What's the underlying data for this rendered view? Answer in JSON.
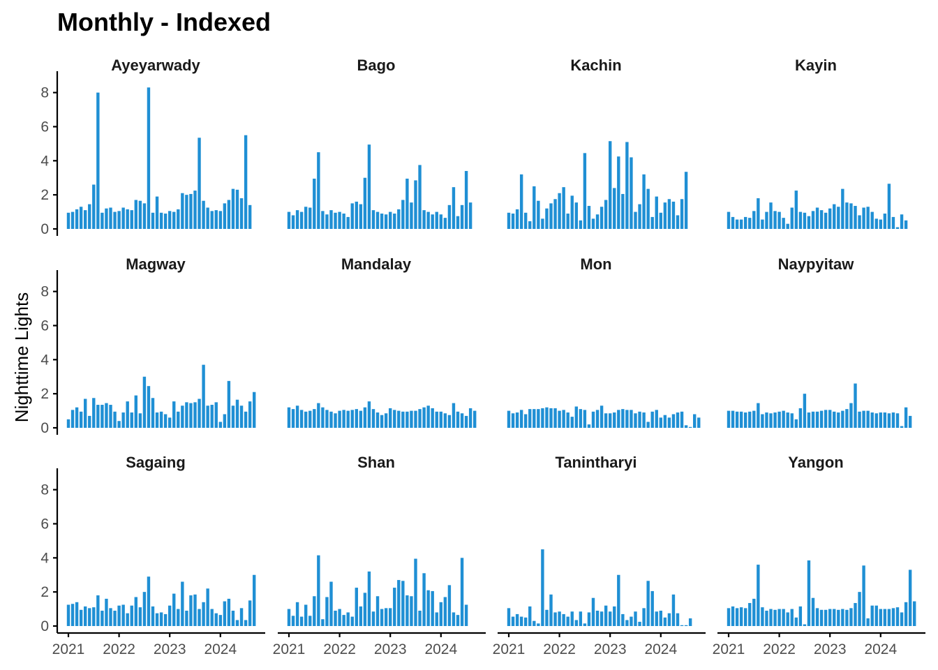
{
  "chart_data": {
    "type": "bar",
    "title": "Monthly - Indexed",
    "xlabel": "",
    "ylabel": "Nighttime Lights",
    "ylim": [
      0,
      8.6
    ],
    "y_ticks": [
      "0",
      "2",
      "4",
      "6",
      "8"
    ],
    "x_ticks": [
      "2021",
      "2022",
      "2023",
      "2024"
    ],
    "x_start": "2021-01",
    "frequency": "monthly",
    "bar_color": "#1f8fd4",
    "grid": false,
    "legend": "none",
    "facets": [
      {
        "name": "Ayeyarwady",
        "values": [
          0.95,
          1.0,
          1.15,
          1.3,
          1.1,
          1.45,
          2.6,
          8.0,
          0.95,
          1.2,
          1.25,
          1.0,
          1.05,
          1.25,
          1.15,
          1.1,
          1.7,
          1.65,
          1.5,
          8.3,
          0.95,
          1.9,
          0.95,
          0.9,
          1.05,
          1.0,
          1.15,
          2.1,
          2.0,
          2.05,
          2.25,
          5.35,
          1.65,
          1.25,
          1.05,
          1.1,
          1.05,
          1.5,
          1.7,
          2.35,
          2.3,
          1.8,
          5.5,
          1.4
        ]
      },
      {
        "name": "Bago",
        "values": [
          1.0,
          0.8,
          1.1,
          1.0,
          1.3,
          1.25,
          2.95,
          4.5,
          1.05,
          0.85,
          1.1,
          0.95,
          1.0,
          0.9,
          0.7,
          1.5,
          1.6,
          1.45,
          3.0,
          4.95,
          1.1,
          1.0,
          0.9,
          0.85,
          1.0,
          0.9,
          1.15,
          1.7,
          2.95,
          1.55,
          2.85,
          3.75,
          1.1,
          1.0,
          0.85,
          1.0,
          0.85,
          0.65,
          1.4,
          2.45,
          0.75,
          1.4,
          3.4,
          1.55
        ]
      },
      {
        "name": "Kachin",
        "values": [
          0.95,
          0.9,
          1.15,
          3.2,
          0.95,
          0.45,
          2.5,
          1.65,
          0.6,
          1.2,
          1.5,
          1.75,
          2.1,
          2.45,
          0.9,
          1.95,
          1.55,
          0.5,
          4.45,
          1.35,
          0.6,
          0.85,
          1.3,
          1.7,
          5.15,
          2.4,
          4.25,
          2.05,
          5.1,
          4.2,
          1.0,
          1.45,
          3.2,
          2.35,
          0.7,
          1.9,
          0.95,
          1.55,
          1.75,
          1.6,
          0.8,
          1.75,
          3.35
        ]
      },
      {
        "name": "Kayin",
        "values": [
          1.0,
          0.7,
          0.55,
          0.55,
          0.7,
          0.65,
          1.05,
          1.8,
          0.55,
          1.0,
          1.55,
          1.05,
          1.0,
          0.65,
          0.3,
          1.25,
          2.25,
          1.0,
          0.95,
          0.75,
          1.05,
          1.25,
          1.1,
          0.95,
          1.2,
          1.45,
          1.3,
          2.35,
          1.55,
          1.5,
          1.35,
          0.8,
          1.25,
          1.3,
          1.0,
          0.6,
          0.55,
          0.9,
          2.65,
          0.7,
          0.1,
          0.85,
          0.5
        ]
      },
      {
        "name": "Magway",
        "values": [
          0.5,
          1.05,
          1.2,
          0.95,
          1.7,
          0.7,
          1.75,
          1.35,
          1.35,
          1.45,
          1.35,
          0.95,
          0.4,
          0.9,
          1.55,
          0.9,
          1.9,
          0.85,
          3.0,
          2.45,
          1.75,
          0.9,
          0.95,
          0.8,
          0.6,
          1.55,
          0.95,
          1.3,
          1.5,
          1.45,
          1.5,
          1.7,
          3.7,
          1.3,
          1.35,
          1.5,
          0.35,
          0.8,
          2.75,
          1.3,
          1.65,
          1.3,
          0.95,
          1.55,
          2.1
        ]
      },
      {
        "name": "Mandalay",
        "values": [
          1.2,
          1.1,
          1.3,
          1.05,
          0.95,
          1.0,
          1.1,
          1.45,
          1.2,
          1.05,
          0.95,
          0.85,
          1.0,
          1.05,
          1.0,
          1.05,
          1.1,
          1.0,
          1.2,
          1.55,
          1.1,
          0.9,
          0.75,
          0.85,
          1.15,
          1.05,
          1.0,
          0.95,
          0.95,
          1.0,
          1.0,
          1.1,
          1.2,
          1.3,
          1.15,
          0.95,
          0.95,
          0.85,
          0.75,
          1.45,
          0.95,
          0.85,
          0.7,
          1.15,
          1.0
        ]
      },
      {
        "name": "Mon",
        "values": [
          1.0,
          0.85,
          0.9,
          1.05,
          0.8,
          1.1,
          1.1,
          1.1,
          1.15,
          1.2,
          1.15,
          1.15,
          1.0,
          1.05,
          0.9,
          0.65,
          1.25,
          1.1,
          1.05,
          0.2,
          0.95,
          1.05,
          1.3,
          0.85,
          0.85,
          0.9,
          1.05,
          1.1,
          1.05,
          1.05,
          0.85,
          0.95,
          0.9,
          0.35,
          0.95,
          1.05,
          0.6,
          0.75,
          0.6,
          0.8,
          0.9,
          0.95,
          0.15,
          0.05,
          0.8,
          0.6
        ]
      },
      {
        "name": "Naypyitaw",
        "values": [
          1.0,
          1.0,
          0.95,
          0.95,
          0.9,
          0.95,
          1.0,
          1.45,
          0.8,
          0.9,
          0.85,
          0.9,
          0.95,
          1.0,
          0.9,
          0.85,
          0.5,
          1.15,
          2.0,
          0.9,
          0.95,
          0.95,
          1.0,
          1.05,
          1.05,
          0.95,
          0.9,
          1.0,
          1.1,
          1.45,
          2.6,
          0.95,
          1.0,
          1.0,
          0.9,
          0.85,
          0.9,
          0.9,
          0.85,
          0.9,
          0.85,
          0.1,
          1.2,
          0.7
        ]
      },
      {
        "name": "Sagaing",
        "values": [
          1.25,
          1.3,
          1.4,
          0.95,
          1.15,
          1.05,
          1.1,
          1.8,
          0.9,
          1.6,
          1.05,
          0.9,
          1.2,
          1.25,
          0.75,
          1.2,
          1.7,
          1.1,
          2.0,
          2.9,
          1.15,
          0.75,
          0.8,
          0.7,
          1.2,
          1.9,
          1.0,
          2.6,
          0.9,
          1.8,
          1.85,
          1.0,
          1.4,
          2.2,
          1.0,
          0.75,
          0.65,
          1.45,
          1.6,
          0.9,
          0.35,
          1.05,
          0.35,
          1.5,
          3.0
        ]
      },
      {
        "name": "Shan",
        "values": [
          1.0,
          0.6,
          1.4,
          0.55,
          1.25,
          0.6,
          1.75,
          4.15,
          0.4,
          1.7,
          2.6,
          0.9,
          1.0,
          0.65,
          0.8,
          0.55,
          2.25,
          1.15,
          1.95,
          3.2,
          0.85,
          1.75,
          1.0,
          1.05,
          1.05,
          2.25,
          2.7,
          2.65,
          1.8,
          1.75,
          3.95,
          0.9,
          3.1,
          2.1,
          2.05,
          0.8,
          1.4,
          1.7,
          2.4,
          0.8,
          0.65,
          4.0,
          1.25
        ]
      },
      {
        "name": "Tanintharyi",
        "values": [
          1.05,
          0.55,
          0.7,
          0.55,
          0.5,
          1.15,
          0.3,
          0.15,
          4.5,
          0.95,
          1.85,
          0.8,
          0.85,
          0.7,
          0.55,
          0.85,
          0.35,
          0.85,
          0.15,
          0.8,
          1.65,
          0.9,
          0.85,
          1.2,
          0.85,
          1.15,
          3.0,
          0.7,
          0.35,
          0.55,
          0.85,
          0.25,
          1.05,
          2.65,
          2.05,
          0.85,
          0.9,
          0.5,
          0.75,
          1.85,
          0.75,
          0.05,
          0.05,
          0.45
        ]
      },
      {
        "name": "Yangon",
        "values": [
          1.05,
          1.15,
          1.05,
          1.1,
          1.05,
          1.35,
          1.6,
          3.6,
          1.1,
          0.9,
          1.0,
          0.95,
          1.0,
          1.0,
          0.8,
          1.0,
          0.5,
          1.15,
          0.1,
          3.85,
          1.65,
          1.05,
          0.95,
          0.95,
          1.0,
          1.0,
          0.95,
          1.0,
          0.95,
          1.05,
          1.35,
          2.0,
          3.55,
          0.45,
          1.2,
          1.2,
          1.0,
          1.0,
          1.0,
          1.05,
          1.1,
          0.8,
          1.4,
          3.3,
          1.45
        ]
      }
    ]
  }
}
